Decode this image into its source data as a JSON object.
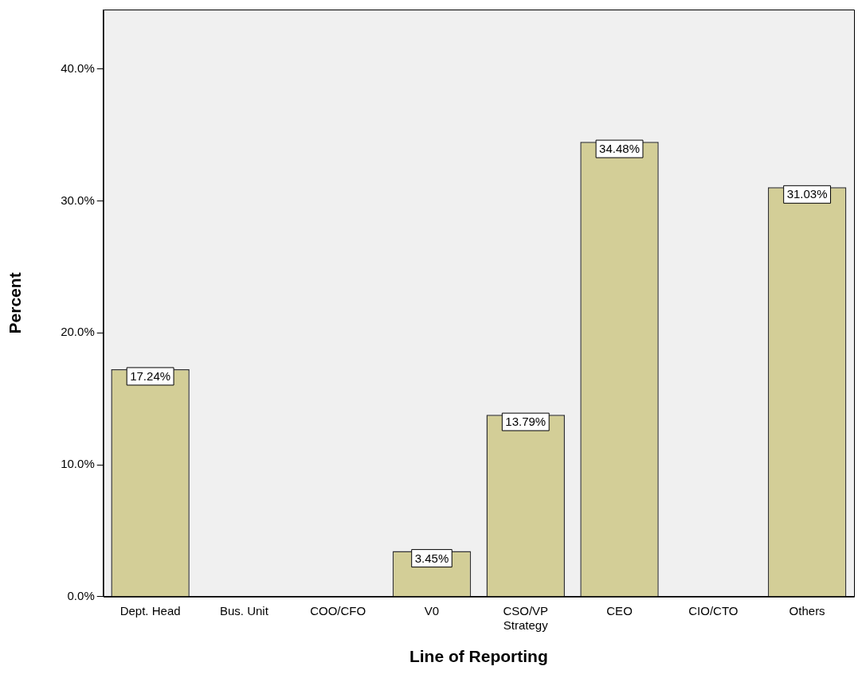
{
  "chart_data": {
    "type": "bar",
    "xlabel": "Line of Reporting",
    "ylabel": "Percent",
    "categories": [
      "Dept. Head",
      "Bus. Unit",
      "COO/CFO",
      "V0",
      "CSO/VP\nStrategy",
      "CEO",
      "CIO/CTO",
      "Others"
    ],
    "values": [
      17.24,
      0,
      0,
      3.45,
      13.79,
      34.48,
      0,
      31.03
    ],
    "value_labels": [
      "17.24%",
      null,
      null,
      "3.45%",
      "13.79%",
      "34.48%",
      null,
      "31.03%"
    ],
    "color": "#d3ce97",
    "ylim": [
      0,
      44.5
    ],
    "yticks": [
      {
        "value": 0,
        "label": "0.0%"
      },
      {
        "value": 10,
        "label": "10.0%"
      },
      {
        "value": 20,
        "label": "20.0%"
      },
      {
        "value": 30,
        "label": "30.0%"
      },
      {
        "value": 40,
        "label": "40.0%"
      }
    ],
    "grid": false,
    "legend": false
  }
}
